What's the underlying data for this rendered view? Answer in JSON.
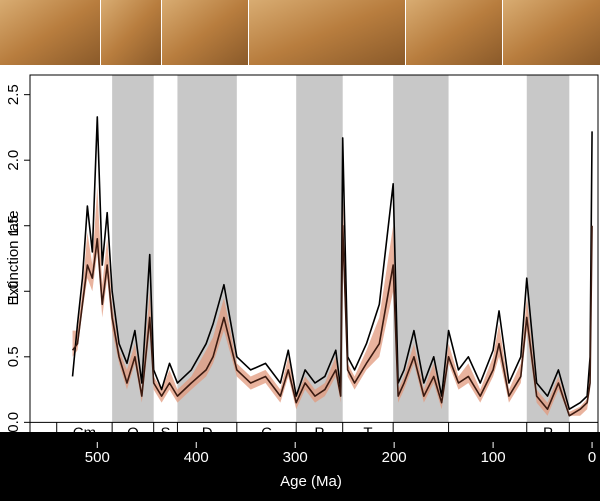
{
  "chart_data": {
    "type": "line",
    "xlabel": "Age (Ma)",
    "ylabel": "Extinction rate",
    "xlim": [
      568,
      -6
    ],
    "ylim": [
      -0.15,
      2.65
    ],
    "xticks": [
      500,
      400,
      300,
      200,
      100,
      0
    ],
    "yticks": [
      {
        "value": 0,
        "label": "0.0"
      },
      0.5,
      {
        "value": 1,
        "label": "1.0"
      },
      1.5,
      {
        "value": 2,
        "label": "2.0"
      },
      2.5
    ],
    "x": [
      525,
      520,
      515,
      510,
      505,
      500,
      495,
      490,
      485,
      478,
      470,
      462,
      455,
      447,
      443,
      435,
      427,
      419,
      405,
      390,
      383,
      372,
      359,
      345,
      330,
      315,
      307,
      299,
      290,
      280,
      270,
      259,
      254,
      252,
      247,
      240,
      228,
      215,
      201,
      196,
      190,
      180,
      170,
      160,
      152,
      145,
      135,
      125,
      113,
      100,
      94,
      84,
      72,
      66,
      56,
      45,
      34,
      23,
      12,
      5,
      2,
      0
    ],
    "band": {
      "color": "#e29a7e",
      "lower": [
        0.5,
        0.55,
        0.85,
        1.1,
        1.0,
        1.3,
        0.8,
        1.1,
        0.7,
        0.45,
        0.25,
        0.45,
        0.15,
        0.7,
        0.25,
        0.15,
        0.25,
        0.15,
        0.25,
        0.35,
        0.45,
        0.7,
        0.35,
        0.25,
        0.3,
        0.15,
        0.35,
        0.1,
        0.25,
        0.15,
        0.2,
        0.35,
        0.15,
        1.3,
        0.35,
        0.25,
        0.4,
        0.5,
        1.0,
        0.15,
        0.25,
        0.45,
        0.15,
        0.3,
        0.1,
        0.45,
        0.25,
        0.3,
        0.15,
        0.35,
        0.5,
        0.15,
        0.3,
        0.7,
        0.15,
        0.05,
        0.25,
        0.05,
        0.05,
        0.1,
        0.25,
        1.3
      ],
      "upper": [
        0.7,
        0.7,
        1.0,
        1.45,
        1.2,
        1.8,
        1.05,
        1.4,
        0.9,
        0.55,
        0.4,
        0.6,
        0.25,
        1.0,
        0.35,
        0.25,
        0.4,
        0.25,
        0.35,
        0.55,
        0.65,
        0.95,
        0.45,
        0.35,
        0.4,
        0.25,
        0.5,
        0.2,
        0.35,
        0.25,
        0.3,
        0.5,
        0.22,
        1.8,
        0.45,
        0.35,
        0.55,
        0.8,
        1.5,
        0.25,
        0.35,
        0.6,
        0.25,
        0.45,
        0.18,
        0.6,
        0.35,
        0.45,
        0.25,
        0.5,
        0.75,
        0.25,
        0.45,
        0.95,
        0.25,
        0.15,
        0.35,
        0.08,
        0.12,
        0.18,
        0.4,
        1.9
      ]
    },
    "series": [
      {
        "color": "#000000",
        "values": [
          0.35,
          0.75,
          1.1,
          1.65,
          1.3,
          2.33,
          1.2,
          1.6,
          1.0,
          0.6,
          0.45,
          0.7,
          0.3,
          1.28,
          0.4,
          0.25,
          0.45,
          0.3,
          0.4,
          0.6,
          0.75,
          1.05,
          0.5,
          0.4,
          0.45,
          0.3,
          0.55,
          0.2,
          0.4,
          0.3,
          0.35,
          0.55,
          0.25,
          2.17,
          0.5,
          0.4,
          0.6,
          0.9,
          1.82,
          0.3,
          0.4,
          0.7,
          0.3,
          0.5,
          0.2,
          0.7,
          0.4,
          0.5,
          0.3,
          0.55,
          0.85,
          0.3,
          0.5,
          1.1,
          0.3,
          0.2,
          0.4,
          0.1,
          0.15,
          0.2,
          0.5,
          2.22
        ]
      },
      {
        "color": "#3b1a10",
        "values": [
          0.55,
          0.6,
          0.9,
          1.2,
          1.1,
          1.4,
          0.9,
          1.2,
          0.8,
          0.5,
          0.3,
          0.5,
          0.2,
          0.8,
          0.3,
          0.2,
          0.3,
          0.2,
          0.3,
          0.4,
          0.5,
          0.8,
          0.4,
          0.3,
          0.35,
          0.2,
          0.4,
          0.15,
          0.3,
          0.2,
          0.25,
          0.4,
          0.2,
          1.5,
          0.4,
          0.3,
          0.45,
          0.6,
          1.2,
          0.2,
          0.3,
          0.5,
          0.2,
          0.35,
          0.15,
          0.5,
          0.3,
          0.35,
          0.2,
          0.4,
          0.6,
          0.2,
          0.35,
          0.8,
          0.2,
          0.1,
          0.3,
          0.05,
          0.1,
          0.15,
          0.3,
          1.5
        ]
      }
    ],
    "shade_color": "#c8c8c8",
    "periods": [
      {
        "label": "Cm",
        "start": 541,
        "end": 485,
        "shaded": false
      },
      {
        "label": "O",
        "start": 485,
        "end": 443,
        "shaded": true
      },
      {
        "label": "S",
        "start": 443,
        "end": 419,
        "shaded": false
      },
      {
        "label": "D",
        "start": 419,
        "end": 359,
        "shaded": true
      },
      {
        "label": "C",
        "start": 359,
        "end": 299,
        "shaded": false
      },
      {
        "label": "P",
        "start": 299,
        "end": 252,
        "shaded": true
      },
      {
        "label": "T",
        "start": 252,
        "end": 201,
        "shaded": false
      },
      {
        "label": null,
        "start": 201,
        "end": 145,
        "shaded": true
      },
      {
        "label": null,
        "start": 145,
        "end": 66,
        "shaded": false
      },
      {
        "label": "P",
        "start": 66,
        "end": 23,
        "shaded": true
      },
      {
        "label": null,
        "start": 23,
        "end": 0,
        "shaded": false
      }
    ]
  }
}
